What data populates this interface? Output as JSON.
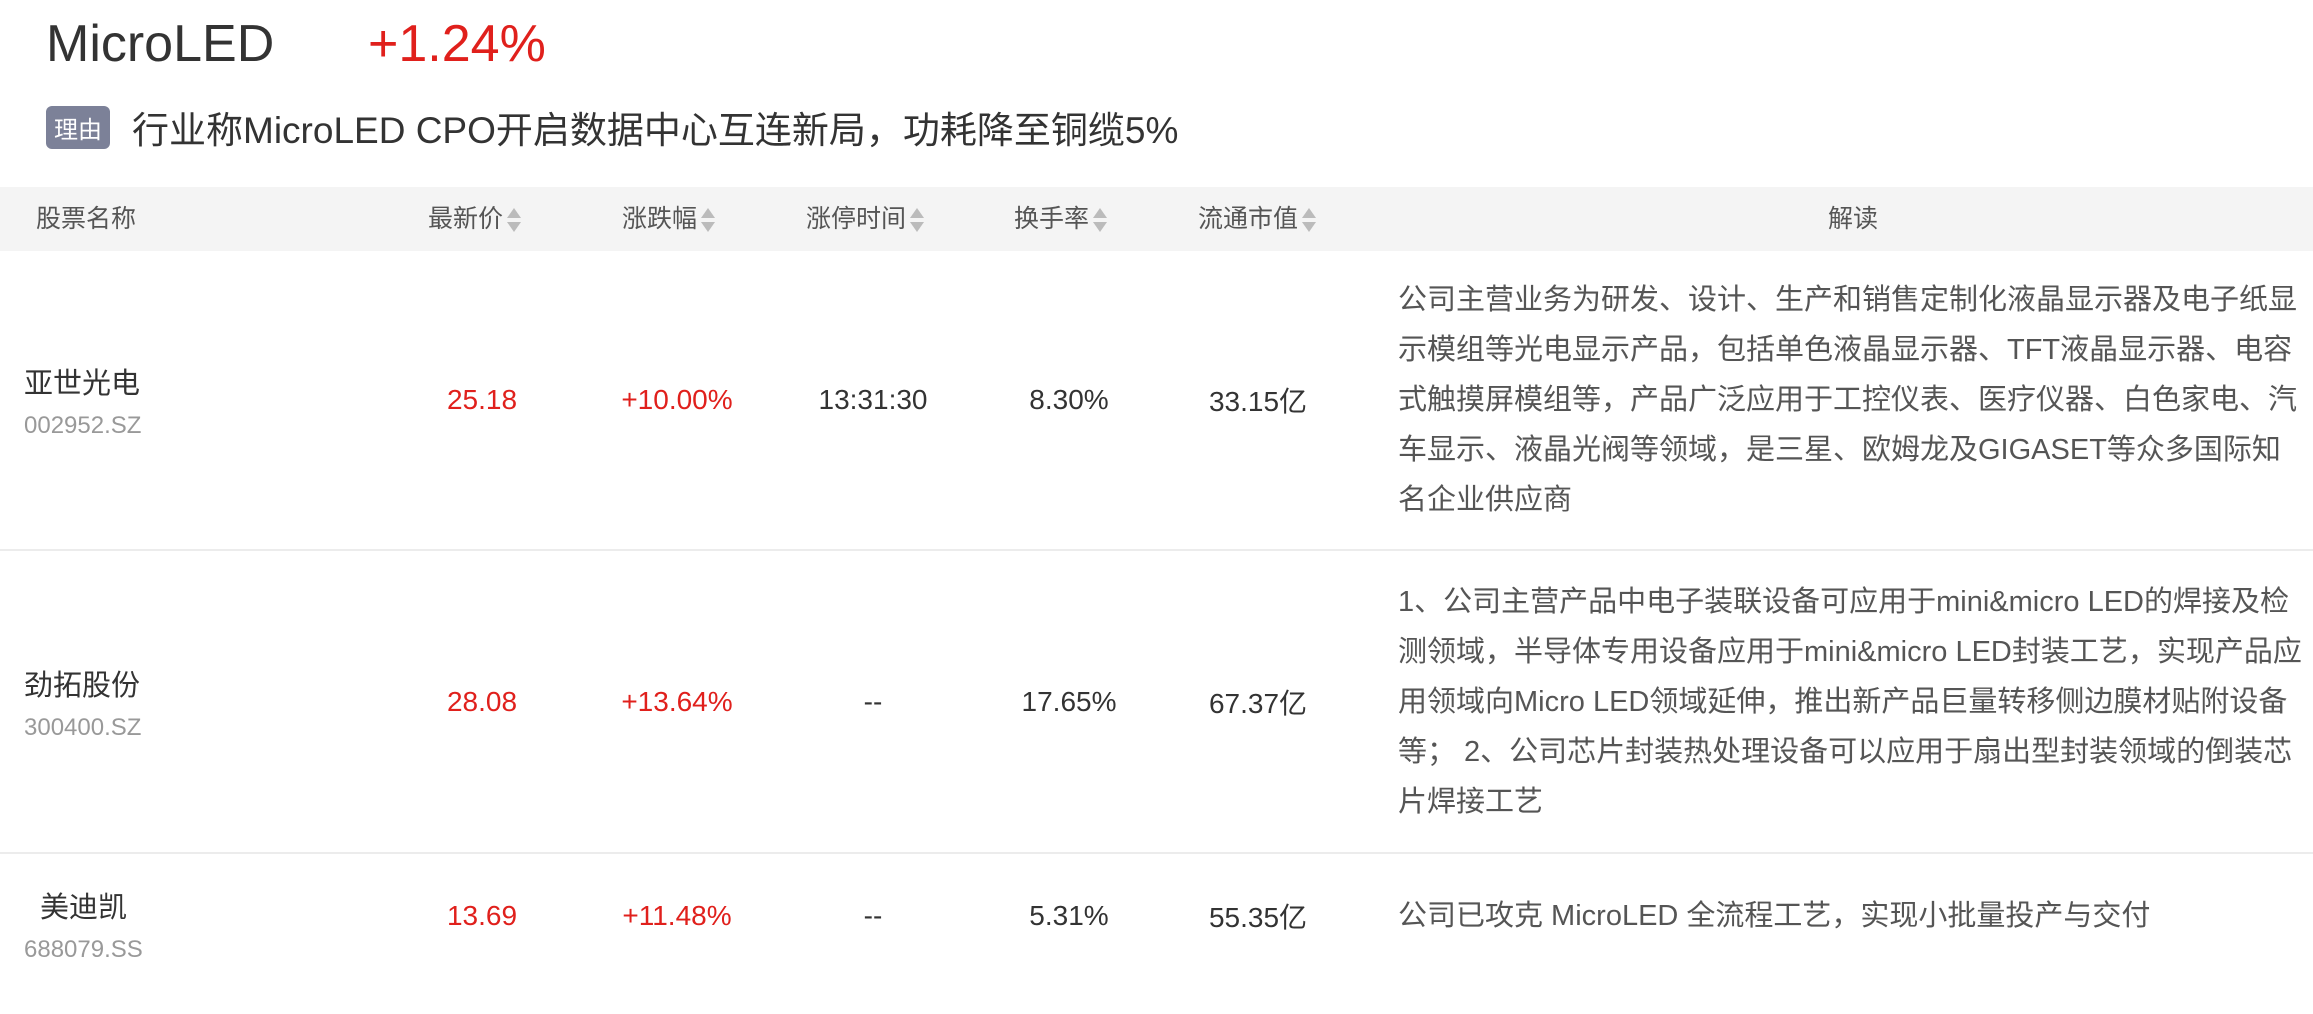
{
  "header": {
    "title": "MicroLED",
    "change": "+1.24%",
    "reason_tag": "理由",
    "reason": "行业称MicroLED CPO开启数据中心互连新局，功耗降至铜缆5%"
  },
  "columns": [
    "股票名称",
    "最新价",
    "涨跌幅",
    "涨停时间",
    "换手率",
    "流通市值",
    "解读"
  ],
  "colors": {
    "up": "#e0201c",
    "tag": "#7c8198",
    "header_bg": "#f4f4f4"
  },
  "rows": [
    {
      "name": "亚世光电",
      "code": "002952.SZ",
      "price": "25.18",
      "change": "+10.00%",
      "limit_time": "13:31:30",
      "turnover": "8.30%",
      "mcap": "33.15亿",
      "desc": "公司主营业务为研发、设计、生产和销售定制化液晶显示器及电子纸显示模组等光电显示产品，包括单色液晶显示器、TFT液晶显示器、电容式触摸屏模组等，产品广泛应用于工控仪表、医疗仪器、白色家电、汽车显示、液晶光阀等领域，是三星、欧姆龙及GIGASET等众多国际知名企业供应商"
    },
    {
      "name": "劲拓股份",
      "code": "300400.SZ",
      "price": "28.08",
      "change": "+13.64%",
      "limit_time": "--",
      "turnover": "17.65%",
      "mcap": "67.37亿",
      "desc": "1、公司主营产品中电子装联设备可应用于mini&micro LED的焊接及检测领域，半导体专用设备应用于mini&micro LED封装工艺，实现产品应用领域向Micro LED领域延伸，推出新产品巨量转移侧边膜材贴附设备等； 2、公司芯片封装热处理设备可以应用于扇出型封装领域的倒装芯片焊接工艺"
    },
    {
      "name": "美迪凯",
      "code": "688079.SS",
      "price": "13.69",
      "change": "+11.48%",
      "limit_time": "--",
      "turnover": "5.31%",
      "mcap": "55.35亿",
      "desc": "公司已攻克 MicroLED 全流程工艺，实现小批量投产与交付"
    }
  ]
}
